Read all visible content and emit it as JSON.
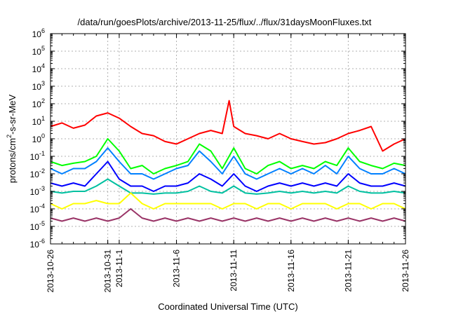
{
  "chart_data": {
    "type": "line",
    "title": "/data/run/goesPlots/archive/2013-11-25/flux/../flux/31daysMoonFluxes.txt",
    "xlabel": "Coordinated Universal Time (UTC)",
    "ylabel_parts": [
      "protons/cm",
      "2",
      "-s-sr-MeV"
    ],
    "y_scale": "log",
    "ylim": [
      1e-06,
      1000000.0
    ],
    "x_range_days": [
      0,
      31
    ],
    "grid": true,
    "y_ticks": [
      {
        "value": 1e-06,
        "base": "10",
        "exp": "-6"
      },
      {
        "value": 1e-05,
        "base": "10",
        "exp": "-5"
      },
      {
        "value": 0.0001,
        "base": "10",
        "exp": "-4"
      },
      {
        "value": 0.001,
        "base": "10",
        "exp": "-3"
      },
      {
        "value": 0.01,
        "base": "10",
        "exp": "-2"
      },
      {
        "value": 0.1,
        "base": "10",
        "exp": "-1"
      },
      {
        "value": 1.0,
        "base": "10",
        "exp": "0"
      },
      {
        "value": 10.0,
        "base": "10",
        "exp": "1"
      },
      {
        "value": 100.0,
        "base": "10",
        "exp": "2"
      },
      {
        "value": 1000.0,
        "base": "10",
        "exp": "3"
      },
      {
        "value": 10000.0,
        "base": "10",
        "exp": "4"
      },
      {
        "value": 100000.0,
        "base": "10",
        "exp": "5"
      },
      {
        "value": 1000000.0,
        "base": "10",
        "exp": "6"
      }
    ],
    "x_ticks": [
      {
        "day": 0,
        "label": "2013-10-26"
      },
      {
        "day": 5,
        "label": "2013-10-31"
      },
      {
        "day": 6,
        "label": "2013-11-1"
      },
      {
        "day": 11,
        "label": "2013-11-6"
      },
      {
        "day": 16,
        "label": "2013-11-11"
      },
      {
        "day": 21,
        "label": "2013-11-16"
      },
      {
        "day": 26,
        "label": "2013-11-21"
      },
      {
        "day": 31,
        "label": "2013-11-26"
      }
    ],
    "series": [
      {
        "color": "#ff0000",
        "x": [
          0,
          1,
          2,
          3,
          4,
          5,
          6,
          7,
          8,
          9,
          10,
          11,
          12,
          13,
          14,
          15,
          15.6,
          16,
          17,
          18,
          19,
          20,
          21,
          22,
          23,
          24,
          25,
          26,
          27,
          28,
          29,
          30,
          31
        ],
        "y": [
          5,
          8,
          4,
          6,
          20,
          30,
          15,
          5,
          2,
          1.5,
          0.7,
          0.5,
          1,
          2,
          3,
          2,
          150,
          5,
          2,
          1.5,
          1,
          2,
          1,
          0.7,
          0.5,
          0.6,
          1,
          2,
          3,
          5,
          0.2,
          0.5,
          1
        ]
      },
      {
        "color": "#00ff00",
        "x": [
          0,
          1,
          2,
          3,
          4,
          5,
          6,
          7,
          8,
          9,
          10,
          11,
          12,
          13,
          14,
          15,
          16,
          17,
          18,
          19,
          20,
          21,
          22,
          23,
          24,
          25,
          26,
          27,
          28,
          29,
          30,
          31
        ],
        "y": [
          0.05,
          0.03,
          0.04,
          0.05,
          0.1,
          1,
          0.2,
          0.02,
          0.03,
          0.01,
          0.02,
          0.03,
          0.05,
          0.5,
          0.2,
          0.02,
          0.3,
          0.02,
          0.01,
          0.03,
          0.05,
          0.02,
          0.03,
          0.02,
          0.05,
          0.03,
          0.3,
          0.05,
          0.03,
          0.02,
          0.04,
          0.03
        ]
      },
      {
        "color": "#0080ff",
        "x": [
          0,
          1,
          2,
          3,
          4,
          5,
          6,
          7,
          8,
          9,
          10,
          11,
          12,
          13,
          14,
          15,
          16,
          17,
          18,
          19,
          20,
          21,
          22,
          23,
          24,
          25,
          26,
          27,
          28,
          29,
          30,
          31
        ],
        "y": [
          0.02,
          0.01,
          0.02,
          0.02,
          0.05,
          0.3,
          0.05,
          0.01,
          0.01,
          0.005,
          0.01,
          0.02,
          0.03,
          0.2,
          0.05,
          0.01,
          0.1,
          0.01,
          0.005,
          0.01,
          0.02,
          0.01,
          0.02,
          0.01,
          0.03,
          0.01,
          0.1,
          0.02,
          0.01,
          0.01,
          0.02,
          0.01
        ]
      },
      {
        "color": "#0000ff",
        "x": [
          0,
          1,
          2,
          3,
          4,
          5,
          6,
          7,
          8,
          9,
          10,
          11,
          12,
          13,
          14,
          15,
          16,
          17,
          18,
          19,
          20,
          21,
          22,
          23,
          24,
          25,
          26,
          27,
          28,
          29,
          30,
          31
        ],
        "y": [
          0.003,
          0.002,
          0.003,
          0.002,
          0.01,
          0.05,
          0.005,
          0.002,
          0.002,
          0.001,
          0.002,
          0.002,
          0.003,
          0.01,
          0.005,
          0.002,
          0.01,
          0.002,
          0.001,
          0.002,
          0.003,
          0.002,
          0.003,
          0.002,
          0.003,
          0.002,
          0.01,
          0.003,
          0.002,
          0.002,
          0.003,
          0.002
        ]
      },
      {
        "color": "#00c0a0",
        "x": [
          0,
          1,
          2,
          3,
          4,
          5,
          6,
          7,
          8,
          9,
          10,
          11,
          12,
          13,
          14,
          15,
          16,
          17,
          18,
          19,
          20,
          21,
          22,
          23,
          24,
          25,
          26,
          27,
          28,
          29,
          30,
          31
        ],
        "y": [
          0.001,
          0.0008,
          0.001,
          0.001,
          0.002,
          0.005,
          0.002,
          0.0008,
          0.0008,
          0.0007,
          0.0008,
          0.0008,
          0.001,
          0.002,
          0.001,
          0.0008,
          0.002,
          0.0008,
          0.0007,
          0.0008,
          0.001,
          0.0008,
          0.001,
          0.0008,
          0.001,
          0.0008,
          0.002,
          0.001,
          0.0008,
          0.0008,
          0.001,
          0.0008
        ]
      },
      {
        "color": "#ffff00",
        "x": [
          0,
          1,
          2,
          3,
          4,
          5,
          6,
          7,
          8,
          9,
          10,
          11,
          12,
          13,
          14,
          15,
          16,
          17,
          18,
          19,
          20,
          21,
          22,
          23,
          24,
          25,
          26,
          27,
          28,
          29,
          30,
          31
        ],
        "y": [
          0.0002,
          0.0001,
          0.0002,
          0.0002,
          0.0003,
          0.0002,
          0.0002,
          0.0008,
          0.0002,
          0.0001,
          0.0002,
          0.0002,
          0.0002,
          0.0002,
          0.0002,
          0.0001,
          0.0002,
          0.0002,
          0.0001,
          0.0002,
          0.0002,
          0.0001,
          0.0002,
          0.0002,
          0.0002,
          0.0001,
          0.0002,
          0.0002,
          0.0001,
          0.0002,
          0.0002,
          0.0001
        ]
      },
      {
        "color": "#993366",
        "x": [
          0,
          1,
          2,
          3,
          4,
          5,
          6,
          7,
          8,
          9,
          10,
          11,
          12,
          13,
          14,
          15,
          16,
          17,
          18,
          19,
          20,
          21,
          22,
          23,
          24,
          25,
          26,
          27,
          28,
          29,
          30,
          31
        ],
        "y": [
          3e-05,
          2e-05,
          3e-05,
          2e-05,
          3e-05,
          2e-05,
          3e-05,
          0.0001,
          3e-05,
          2e-05,
          3e-05,
          2e-05,
          3e-05,
          2e-05,
          3e-05,
          2e-05,
          3e-05,
          2e-05,
          3e-05,
          2e-05,
          3e-05,
          2e-05,
          3e-05,
          2e-05,
          3e-05,
          2e-05,
          3e-05,
          2e-05,
          3e-05,
          2e-05,
          3e-05,
          2e-05
        ]
      }
    ]
  }
}
